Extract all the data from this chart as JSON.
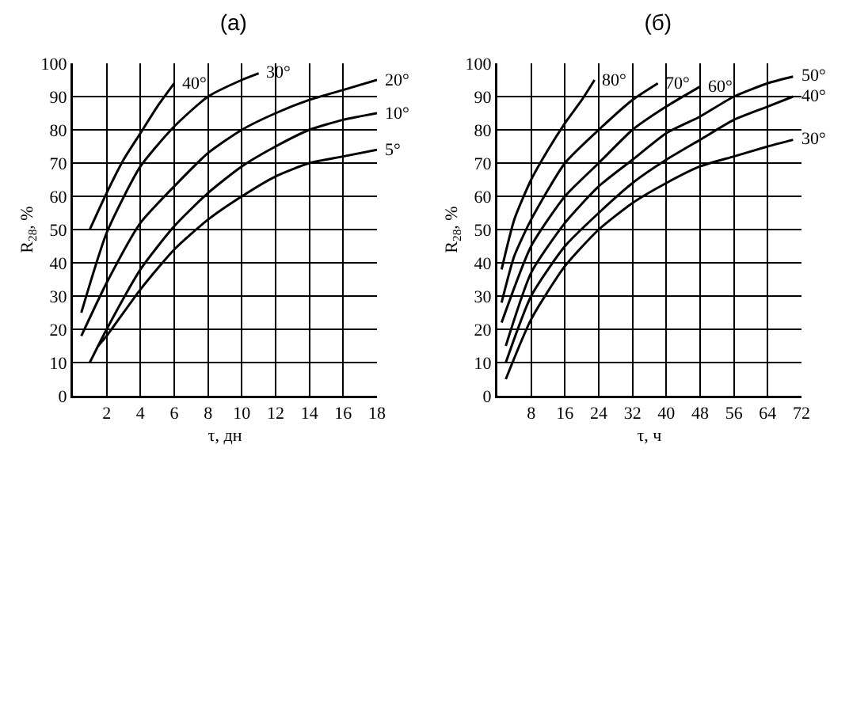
{
  "chart_data": [
    {
      "type": "line",
      "title": "(а)",
      "xlabel": "τ, дн",
      "ylabel": "R$_{28}$, %",
      "xlim": [
        0,
        18
      ],
      "xticks": [
        2,
        4,
        6,
        8,
        10,
        12,
        14,
        16,
        18
      ],
      "ylim": [
        0,
        100
      ],
      "yticks": [
        0,
        10,
        20,
        30,
        40,
        50,
        60,
        70,
        80,
        90,
        100
      ],
      "grid": true,
      "legend": false,
      "line_style": "solid",
      "series": [
        {
          "name": "40°",
          "color": "#000000",
          "x": [
            1,
            2,
            3,
            4,
            5,
            6
          ],
          "values": [
            50,
            61,
            71,
            79,
            87,
            94
          ]
        },
        {
          "name": "30°",
          "color": "#000000",
          "x": [
            0.5,
            2,
            4,
            6,
            8,
            10,
            11
          ],
          "values": [
            25,
            49,
            69,
            81,
            90,
            95,
            97
          ]
        },
        {
          "name": "20°",
          "color": "#000000",
          "x": [
            0.5,
            2,
            4,
            6,
            8,
            10,
            12,
            14,
            16,
            18
          ],
          "values": [
            18,
            34,
            52,
            63,
            73,
            80,
            85,
            89,
            92,
            95
          ]
        },
        {
          "name": "10°",
          "color": "#000000",
          "x": [
            1,
            2,
            4,
            6,
            8,
            10,
            12,
            14,
            16,
            18
          ],
          "values": [
            10,
            20,
            38,
            51,
            61,
            69,
            75,
            80,
            83,
            85
          ]
        },
        {
          "name": "5°",
          "color": "#000000",
          "x": [
            1.5,
            2,
            4,
            6,
            8,
            10,
            12,
            14,
            16,
            18
          ],
          "values": [
            15,
            18,
            32,
            44,
            53,
            60,
            66,
            70,
            72,
            74
          ]
        }
      ]
    },
    {
      "type": "line",
      "title": "(б)",
      "xlabel": "τ, ч",
      "ylabel": "R$_{28}$, %",
      "xlim": [
        0,
        72
      ],
      "xticks": [
        8,
        16,
        24,
        32,
        40,
        48,
        56,
        64,
        72
      ],
      "ylim": [
        0,
        100
      ],
      "yticks": [
        0,
        10,
        20,
        30,
        40,
        50,
        60,
        70,
        80,
        90,
        100
      ],
      "grid": true,
      "legend": false,
      "line_style": "solid",
      "series": [
        {
          "name": "80°",
          "color": "#000000",
          "x": [
            1,
            4,
            8,
            12,
            16,
            20,
            23
          ],
          "values": [
            38,
            53,
            65,
            74,
            82,
            89,
            95
          ]
        },
        {
          "name": "70°",
          "color": "#000000",
          "x": [
            1,
            4,
            8,
            16,
            24,
            32,
            38
          ],
          "values": [
            28,
            42,
            53,
            70,
            80,
            89,
            94
          ]
        },
        {
          "name": "60°",
          "color": "#000000",
          "x": [
            1,
            8,
            16,
            24,
            32,
            40,
            48
          ],
          "values": [
            22,
            45,
            60,
            70,
            80,
            87,
            93
          ]
        },
        {
          "name": "50°",
          "color": "#000000",
          "x": [
            2,
            8,
            16,
            24,
            32,
            40,
            48,
            56,
            64,
            70
          ],
          "values": [
            15,
            37,
            52,
            63,
            71,
            79,
            84,
            90,
            94,
            96
          ]
        },
        {
          "name": "40°",
          "color": "#000000",
          "x": [
            2,
            8,
            16,
            24,
            32,
            40,
            48,
            56,
            64,
            70
          ],
          "values": [
            10,
            30,
            45,
            55,
            64,
            71,
            77,
            83,
            87,
            90
          ]
        },
        {
          "name": "30°",
          "color": "#000000",
          "x": [
            2,
            8,
            16,
            24,
            32,
            40,
            48,
            56,
            64,
            70
          ],
          "values": [
            5,
            23,
            39,
            50,
            58,
            64,
            69,
            72,
            75,
            77
          ]
        }
      ]
    }
  ]
}
